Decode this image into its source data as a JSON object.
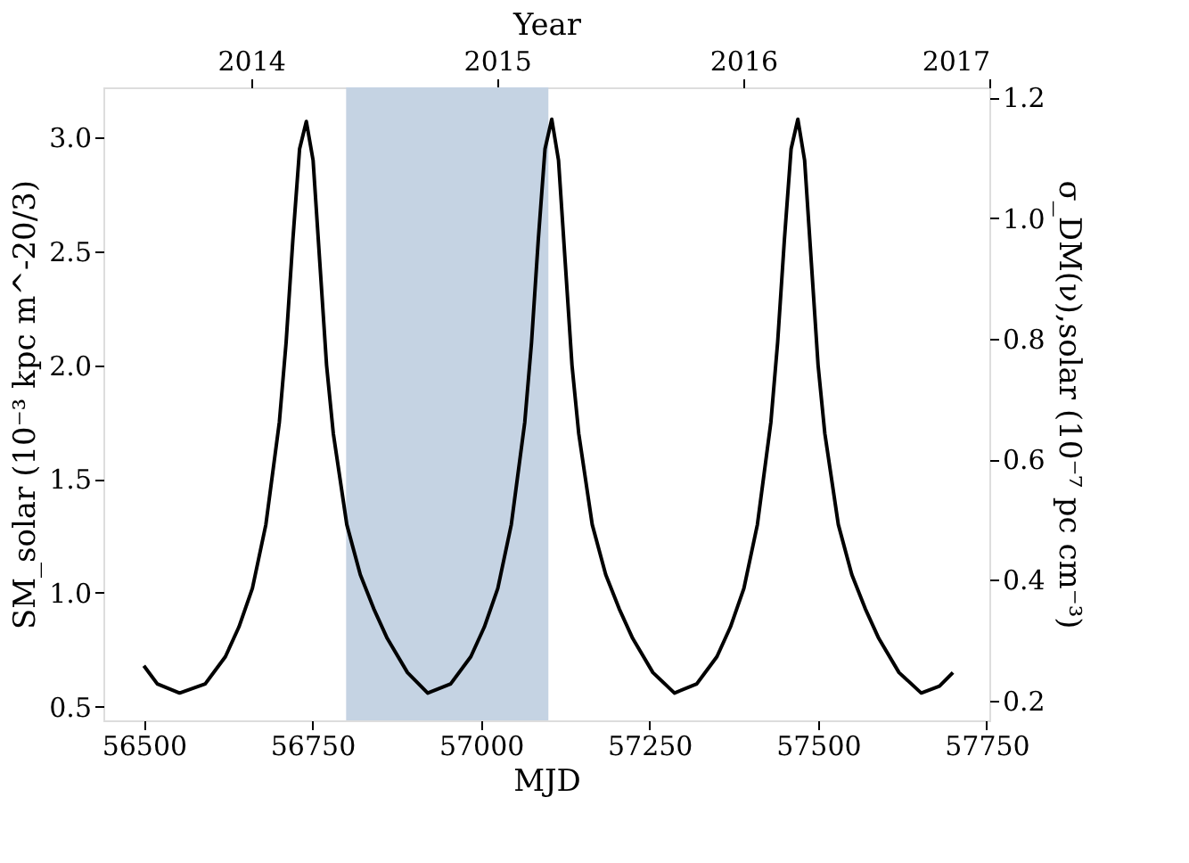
{
  "chart_data": {
    "type": "line",
    "xlabel": "MJD",
    "ylabel": "SM_solar (10⁻³ kpc m^-20/3)",
    "y2label": "σ_DM(ν),solar (10⁻⁷ pc cm⁻³)",
    "x2label": "Year",
    "xlim": [
      56440,
      57754
    ],
    "xticks": [
      56500,
      56750,
      57000,
      57250,
      57500,
      57750
    ],
    "x2lim": [
      2013.4,
      2017.0
    ],
    "x2ticks": [
      2014,
      2015,
      2016,
      2017
    ],
    "ylim": [
      0.44,
      3.22
    ],
    "yticks": [
      0.5,
      {
        "value": 1.0,
        "label": "1.0"
      },
      1.5,
      {
        "value": 2.0,
        "label": "2.0"
      },
      2.5,
      {
        "value": 3.0,
        "label": "3.0"
      }
    ],
    "y2lim": [
      0.167,
      1.217
    ],
    "y2ticks": [
      0.2,
      0.4,
      0.6,
      0.8,
      {
        "value": 1.0,
        "label": "1.0"
      },
      1.2
    ],
    "grid": false,
    "marker": "none",
    "line_style": "solid",
    "bands": [
      {
        "axis": "x",
        "from": 56800,
        "to": 57100,
        "color": "#c5d3e3"
      }
    ],
    "series": [
      {
        "color": "#000000",
        "x": [
          56500,
          56520,
          56553,
          56591,
          56621,
          56641,
          56661,
          56681,
          56701,
          56711,
          56721,
          56731,
          56741,
          56751,
          56761,
          56771,
          56781,
          56801,
          56821,
          56841,
          56861,
          56891,
          56921,
          56955,
          56985,
          57005,
          57025,
          57045,
          57065,
          57075,
          57085,
          57095,
          57105,
          57115,
          57125,
          57135,
          57145,
          57165,
          57185,
          57205,
          57225,
          57255,
          57287,
          57320,
          57350,
          57370,
          57390,
          57410,
          57430,
          57440,
          57450,
          57460,
          57470,
          57480,
          57490,
          57500,
          57510,
          57530,
          57550,
          57570,
          57590,
          57620,
          57653,
          57680,
          57700
        ],
        "values": [
          0.68,
          0.6,
          0.56,
          0.6,
          0.72,
          0.85,
          1.02,
          1.3,
          1.75,
          2.1,
          2.55,
          2.95,
          3.07,
          2.9,
          2.45,
          2.0,
          1.7,
          1.3,
          1.08,
          0.93,
          0.8,
          0.65,
          0.56,
          0.6,
          0.72,
          0.85,
          1.02,
          1.3,
          1.75,
          2.1,
          2.55,
          2.95,
          3.08,
          2.9,
          2.45,
          2.0,
          1.7,
          1.3,
          1.08,
          0.93,
          0.8,
          0.65,
          0.56,
          0.6,
          0.72,
          0.85,
          1.02,
          1.3,
          1.75,
          2.1,
          2.55,
          2.95,
          3.08,
          2.9,
          2.45,
          2.0,
          1.7,
          1.3,
          1.08,
          0.93,
          0.8,
          0.65,
          0.56,
          0.59,
          0.65
        ]
      }
    ]
  }
}
